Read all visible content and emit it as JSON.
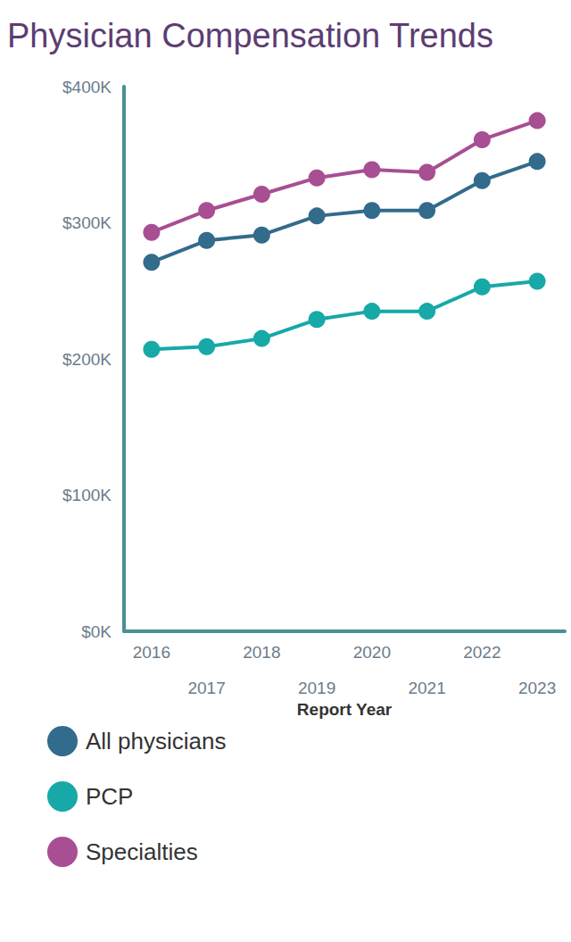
{
  "chart_data": {
    "type": "line",
    "title": "Physician Compensation Trends",
    "x_label": "Report Year",
    "categories": [
      "2016",
      "2017",
      "2018",
      "2019",
      "2020",
      "2021",
      "2022",
      "2023"
    ],
    "series": [
      {
        "name": "All physicians",
        "color": "#336b8c",
        "values": [
          271,
          287,
          291,
          305,
          309,
          309,
          331,
          345
        ]
      },
      {
        "name": "PCP",
        "color": "#17a8a8",
        "values": [
          207,
          209,
          215,
          229,
          235,
          235,
          253,
          257
        ]
      },
      {
        "name": "Specialties",
        "color": "#a84e93",
        "values": [
          293,
          309,
          321,
          333,
          339,
          337,
          361,
          375
        ]
      }
    ],
    "ylim": [
      0,
      400
    ],
    "yticks": [
      {
        "value": 0,
        "label": "$0K"
      },
      {
        "value": 100,
        "label": "$100K"
      },
      {
        "value": 200,
        "label": "$200K"
      },
      {
        "value": 300,
        "label": "$300K"
      },
      {
        "value": 400,
        "label": "$400K"
      }
    ],
    "grid": false,
    "legend": "bottom-left",
    "marker": "circle"
  }
}
